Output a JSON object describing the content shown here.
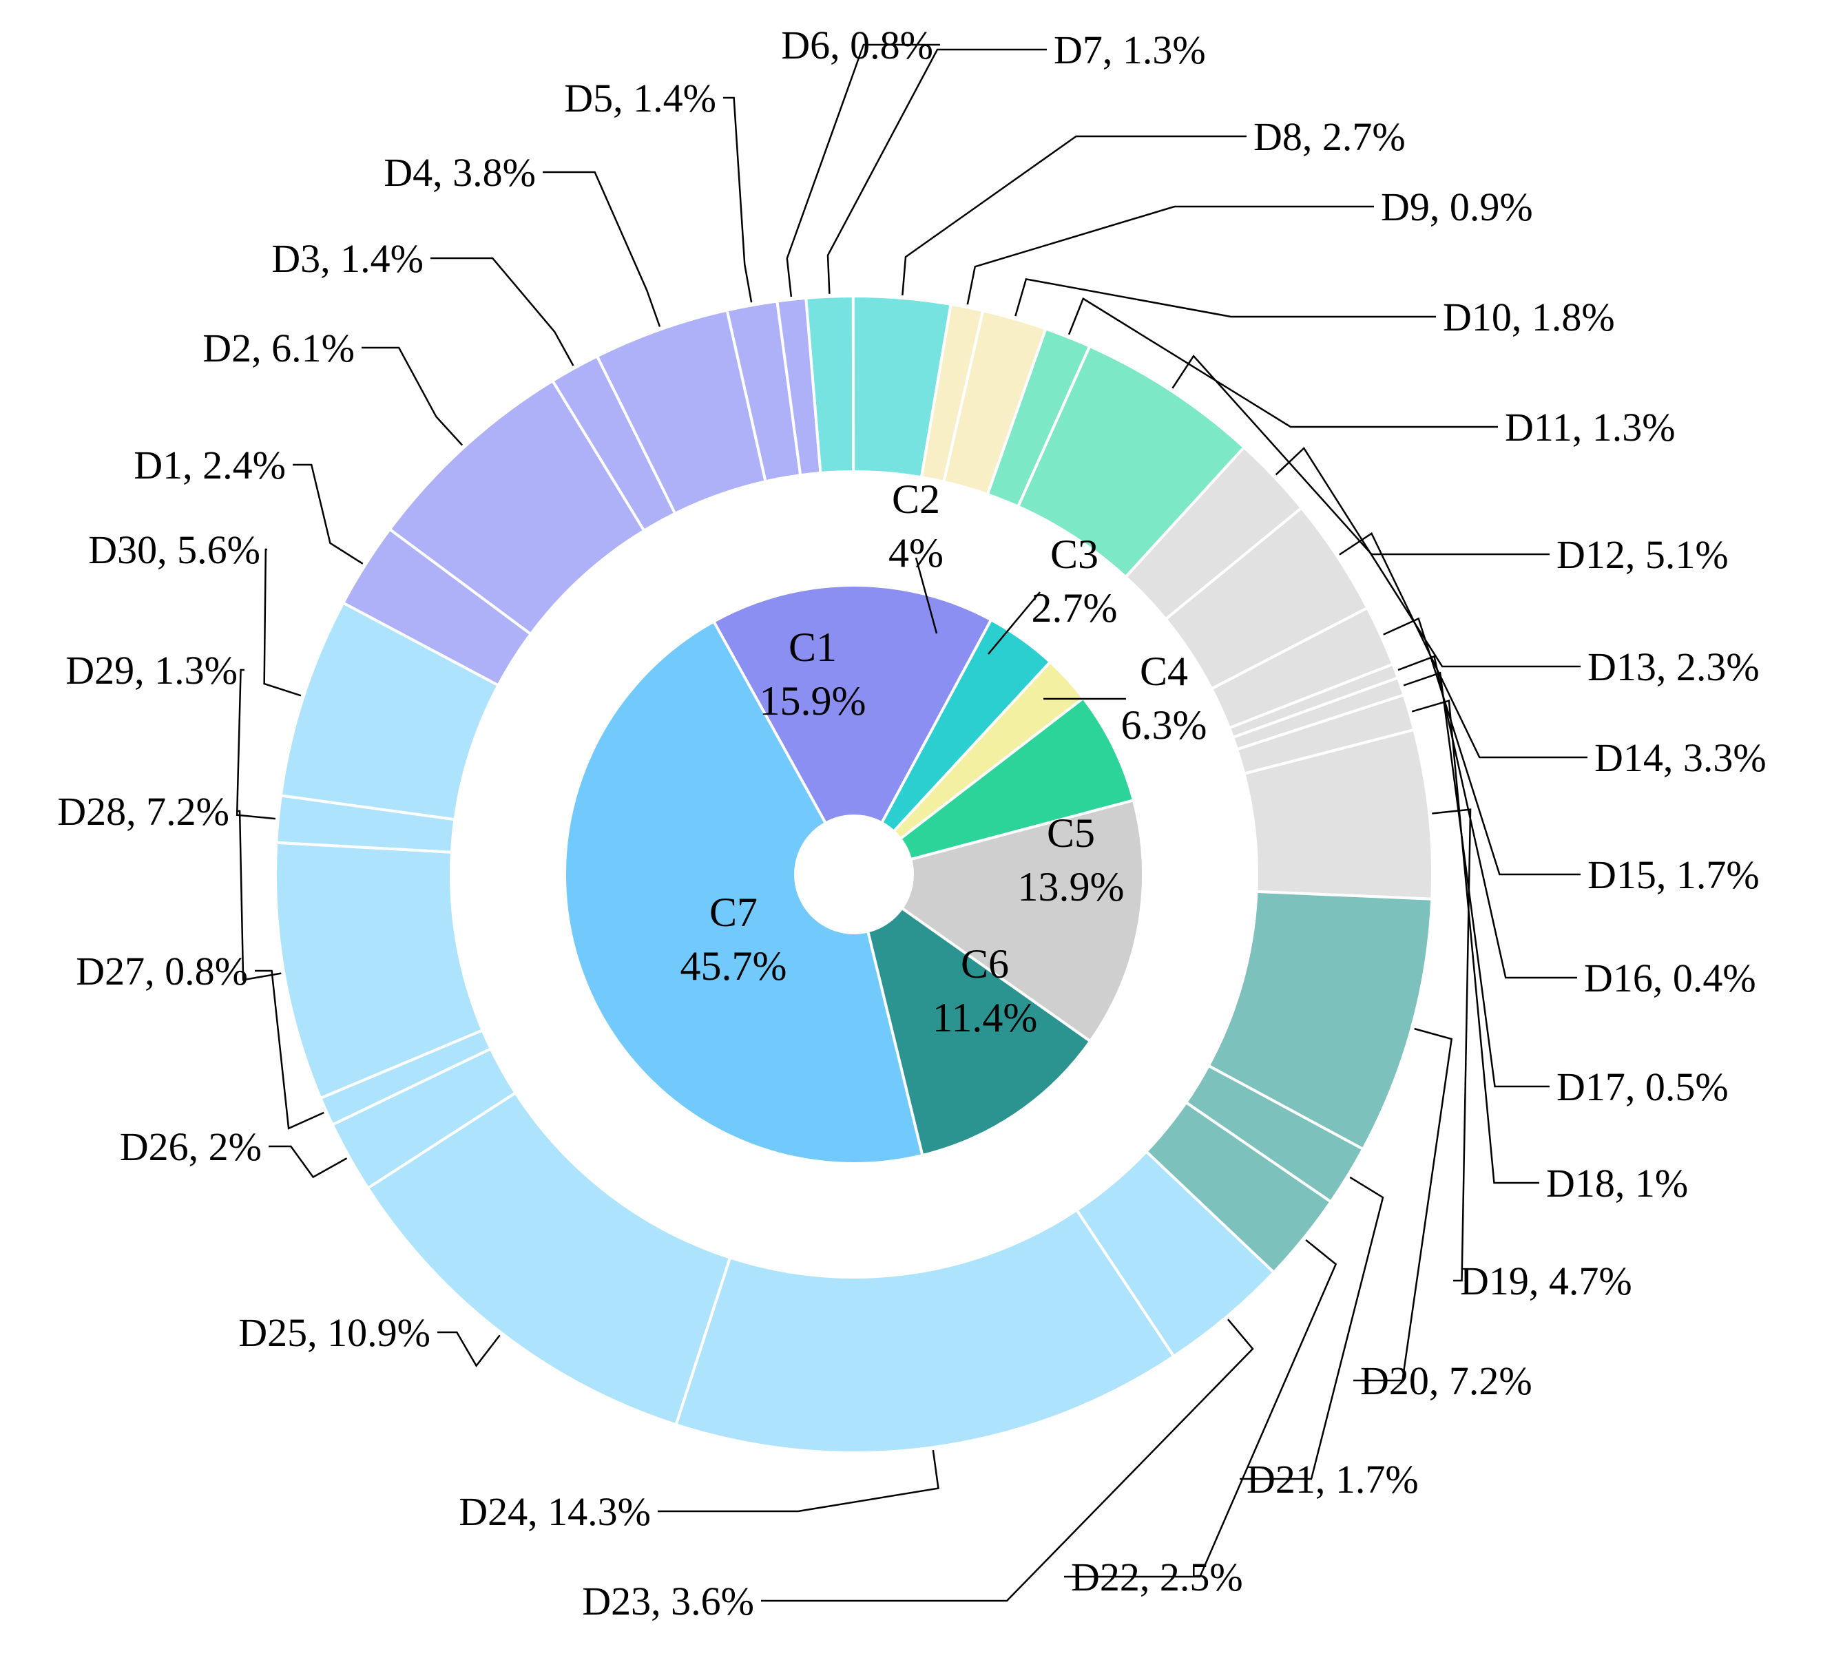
{
  "chart_data": {
    "type": "pie",
    "variant": "nested-donut",
    "title": "",
    "inner": {
      "name": "Category",
      "start": "C1 begins at 11 o'clock, clockwise",
      "slices": [
        {
          "id": "C1",
          "label": "C1",
          "value": 15.9,
          "value_text": "15.9%",
          "color": "#8b8ff2"
        },
        {
          "id": "C2",
          "label": "C2",
          "value": 4,
          "value_text": "4%",
          "color": "#2ccfcf"
        },
        {
          "id": "C3",
          "label": "C3",
          "value": 2.7,
          "value_text": "2.7%",
          "color": "#f3f0a2"
        },
        {
          "id": "C4",
          "label": "C4",
          "value": 6.3,
          "value_text": "6.3%",
          "color": "#2dd49a"
        },
        {
          "id": "C5",
          "label": "C5",
          "value": 13.9,
          "value_text": "13.9%",
          "color": "#cfcfcf"
        },
        {
          "id": "C6",
          "label": "C6",
          "value": 11.4,
          "value_text": "11.4%",
          "color": "#2c9490"
        },
        {
          "id": "C7",
          "label": "C7",
          "value": 45.7,
          "value_text": "45.7%",
          "color": "#72c9fb"
        }
      ]
    },
    "outer": {
      "name": "Sub-category",
      "start": "D1 begins at 10 o'clock, clockwise",
      "slices": [
        {
          "id": "D1",
          "text": "D1, 2.4%",
          "value": 2.4,
          "parent": "C1",
          "color": "#aeb1f7"
        },
        {
          "id": "D2",
          "text": "D2, 6.1%",
          "value": 6.1,
          "parent": "C1",
          "color": "#aeb1f7"
        },
        {
          "id": "D3",
          "text": "D3, 1.4%",
          "value": 1.4,
          "parent": "C1",
          "color": "#aeb1f7"
        },
        {
          "id": "D4",
          "text": "D4, 3.8%",
          "value": 3.8,
          "parent": "C1",
          "color": "#aeb1f7"
        },
        {
          "id": "D5",
          "text": "D5, 1.4%",
          "value": 1.4,
          "parent": "C1",
          "color": "#aeb1f7"
        },
        {
          "id": "D6",
          "text": "D6, 0.8%",
          "value": 0.8,
          "parent": "C1",
          "color": "#aeb1f7"
        },
        {
          "id": "D7",
          "text": "D7, 1.3%",
          "value": 1.3,
          "parent": "C2",
          "color": "#76e3e0"
        },
        {
          "id": "D8",
          "text": "D8, 2.7%",
          "value": 2.7,
          "parent": "C2",
          "color": "#76e3e0"
        },
        {
          "id": "D9",
          "text": "D9, 0.9%",
          "value": 0.9,
          "parent": "C3",
          "color": "#f8efc6"
        },
        {
          "id": "D10",
          "text": "D10, 1.8%",
          "value": 1.8,
          "parent": "C3",
          "color": "#f8efc6"
        },
        {
          "id": "D11",
          "text": "D11, 1.3%",
          "value": 1.3,
          "parent": "C4",
          "color": "#7de8c6"
        },
        {
          "id": "D12",
          "text": "D12, 5.1%",
          "value": 5.1,
          "parent": "C4",
          "color": "#7de8c6"
        },
        {
          "id": "D13",
          "text": "D13, 2.3%",
          "value": 2.3,
          "parent": "C5",
          "color": "#e1e1e1"
        },
        {
          "id": "D14",
          "text": "D14, 3.3%",
          "value": 3.3,
          "parent": "C5",
          "color": "#e1e1e1"
        },
        {
          "id": "D15",
          "text": "D15, 1.7%",
          "value": 1.7,
          "parent": "C5",
          "color": "#e1e1e1"
        },
        {
          "id": "D16",
          "text": "D16, 0.4%",
          "value": 0.4,
          "parent": "C5",
          "color": "#e1e1e1"
        },
        {
          "id": "D17",
          "text": "D17, 0.5%",
          "value": 0.5,
          "parent": "C5",
          "color": "#e1e1e1"
        },
        {
          "id": "D18",
          "text": "D18, 1%",
          "value": 1,
          "parent": "C5",
          "color": "#e1e1e1"
        },
        {
          "id": "D19",
          "text": "D19, 4.7%",
          "value": 4.7,
          "parent": "C5",
          "color": "#e1e1e1"
        },
        {
          "id": "D20",
          "text": "D20, 7.2%",
          "value": 7.2,
          "parent": "C6",
          "color": "#7cc1bc"
        },
        {
          "id": "D21",
          "text": "D21, 1.7%",
          "value": 1.7,
          "parent": "C6",
          "color": "#7cc1bc"
        },
        {
          "id": "D22",
          "text": "D22, 2.5%",
          "value": 2.5,
          "parent": "C6",
          "color": "#7cc1bc"
        },
        {
          "id": "D23",
          "text": "D23, 3.6%",
          "value": 3.6,
          "parent": "C7",
          "color": "#ade3fc"
        },
        {
          "id": "D24",
          "text": "D24, 14.3%",
          "value": 14.3,
          "parent": "C7",
          "color": "#ade3fc"
        },
        {
          "id": "D25",
          "text": "D25, 10.9%",
          "value": 10.9,
          "parent": "C7",
          "color": "#ade3fc"
        },
        {
          "id": "D26",
          "text": "D26, 2%",
          "value": 2,
          "parent": "C7",
          "color": "#ade3fc"
        },
        {
          "id": "D27",
          "text": "D27, 0.8%",
          "value": 0.8,
          "parent": "C7",
          "color": "#ade3fc"
        },
        {
          "id": "D28",
          "text": "D28, 7.2%",
          "value": 7.2,
          "parent": "C7",
          "color": "#ade3fc"
        },
        {
          "id": "D29",
          "text": "D29, 1.3%",
          "value": 1.3,
          "parent": "C7",
          "color": "#ade3fc"
        },
        {
          "id": "D30",
          "text": "D30, 5.6%",
          "value": 5.6,
          "parent": "C7",
          "color": "#ade3fc"
        }
      ]
    },
    "legend": "none (labels placed around ring with leader lines)"
  }
}
